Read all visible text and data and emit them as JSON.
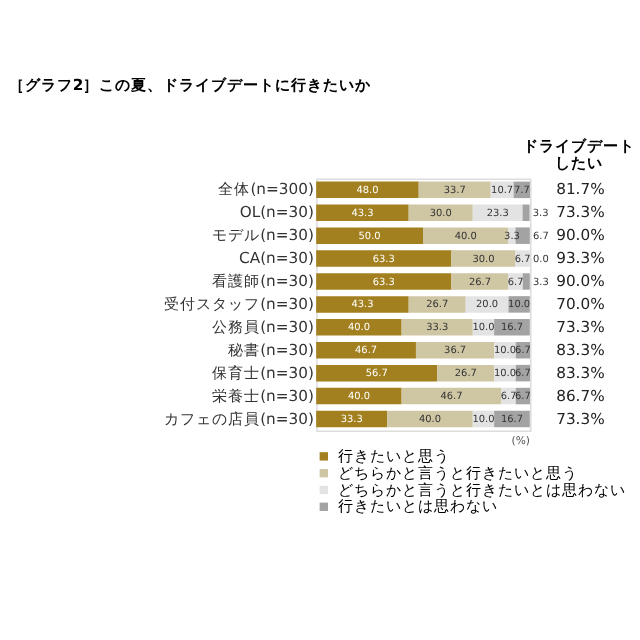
{
  "chart_data": {
    "type": "bar",
    "orientation": "horizontal",
    "stacked": true,
    "legend": "bottom",
    "title": "［グラフ2］この夏、ドライブデートに行きたいか",
    "categories": [
      "全体(n=300)",
      "OL(n=30)",
      "モデル(n=30)",
      "CA(n=30)",
      "看護師(n=30)",
      "受付スタッフ(n=30)",
      "公務員(n=30)",
      "秘書(n=30)",
      "保育士(n=30)",
      "栄養士(n=30)",
      "カフェの店員(n=30)"
    ],
    "series": [
      {
        "name": "行きたいと思う",
        "color": "#a3801f",
        "values": [
          48.0,
          43.3,
          50.0,
          63.3,
          63.3,
          43.3,
          40.0,
          46.7,
          56.7,
          40.0,
          33.3
        ],
        "value_labels": [
          "48.0",
          "43.3",
          "50.0",
          "63.3",
          "63.3",
          "43.3",
          "40.0",
          "46.7",
          "56.7",
          "40.0",
          "33.3"
        ]
      },
      {
        "name": "どちらかと言うと行きたいと思う",
        "color": "#cfc6a4",
        "values": [
          33.7,
          30.0,
          40.0,
          30.0,
          26.7,
          26.7,
          33.3,
          36.7,
          26.7,
          46.7,
          40.0
        ],
        "value_labels": [
          "33.7",
          "30.0",
          "40.0",
          "30.0",
          "26.7",
          "26.7",
          "33.3",
          "36.7",
          "26.7",
          "46.7",
          "40.0"
        ]
      },
      {
        "name": "どちらかと言うと行きたいとは思わない",
        "color": "#e3e3e3",
        "values": [
          10.7,
          23.3,
          3.3,
          6.7,
          6.7,
          20.0,
          10.0,
          10.0,
          10.0,
          6.7,
          10.0
        ],
        "value_labels": [
          "10.7",
          "23.3",
          "3.3",
          "6.7",
          "6.7",
          "20.0",
          "10.0",
          "10.0",
          "10.0",
          "6.7",
          "10.0"
        ]
      },
      {
        "name": "行きたいとは思わない",
        "color": "#a3a3a3",
        "values": [
          7.7,
          3.3,
          6.7,
          0.0,
          3.3,
          10.0,
          16.7,
          6.7,
          6.7,
          6.7,
          16.7
        ],
        "value_labels": [
          "7.7",
          "3.3",
          "6.7",
          "0.0",
          "3.3",
          "10.0",
          "16.7",
          "6.7",
          "6.7",
          "6.7",
          "16.7"
        ]
      }
    ],
    "annotations": [
      "ドライブデートしたい",
      "(%)",
      "81.7%",
      "73.3%",
      "90.0%",
      "93.3%",
      "90.0%",
      "70.0%",
      "73.3%",
      "83.3%",
      "83.3%",
      "86.7%",
      "73.3%"
    ]
  }
}
